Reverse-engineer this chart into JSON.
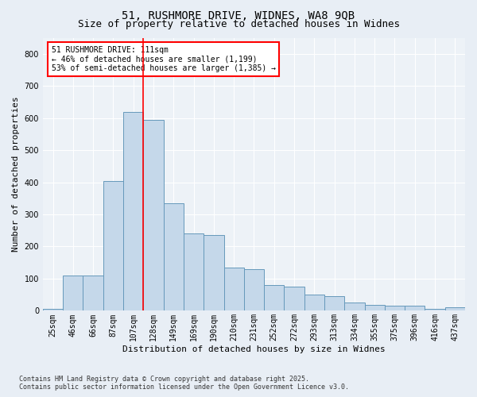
{
  "title_line1": "51, RUSHMORE DRIVE, WIDNES, WA8 9QB",
  "title_line2": "Size of property relative to detached houses in Widnes",
  "xlabel": "Distribution of detached houses by size in Widnes",
  "ylabel": "Number of detached properties",
  "categories": [
    "25sqm",
    "46sqm",
    "66sqm",
    "87sqm",
    "107sqm",
    "128sqm",
    "149sqm",
    "169sqm",
    "190sqm",
    "210sqm",
    "231sqm",
    "252sqm",
    "272sqm",
    "293sqm",
    "313sqm",
    "334sqm",
    "355sqm",
    "375sqm",
    "396sqm",
    "416sqm",
    "437sqm"
  ],
  "bar_heights": [
    5,
    110,
    110,
    405,
    620,
    595,
    335,
    240,
    235,
    135,
    130,
    80,
    75,
    50,
    45,
    25,
    18,
    15,
    15,
    5,
    10
  ],
  "bar_color": "#c5d8ea",
  "bar_edge_color": "#6699bb",
  "vline_color": "red",
  "vline_x_index": 5,
  "annotation_title": "51 RUSHMORE DRIVE: 111sqm",
  "annotation_line2": "← 46% of detached houses are smaller (1,199)",
  "annotation_line3": "53% of semi-detached houses are larger (1,385) →",
  "ylim": [
    0,
    850
  ],
  "yticks": [
    0,
    100,
    200,
    300,
    400,
    500,
    600,
    700,
    800
  ],
  "footer_line1": "Contains HM Land Registry data © Crown copyright and database right 2025.",
  "footer_line2": "Contains public sector information licensed under the Open Government Licence v3.0.",
  "bg_color": "#e8eef5",
  "plot_bg_color": "#edf2f7",
  "grid_color": "#ffffff",
  "title_fontsize": 10,
  "subtitle_fontsize": 9,
  "ylabel_fontsize": 8,
  "xlabel_fontsize": 8,
  "tick_fontsize": 7,
  "annot_fontsize": 7,
  "footer_fontsize": 6
}
